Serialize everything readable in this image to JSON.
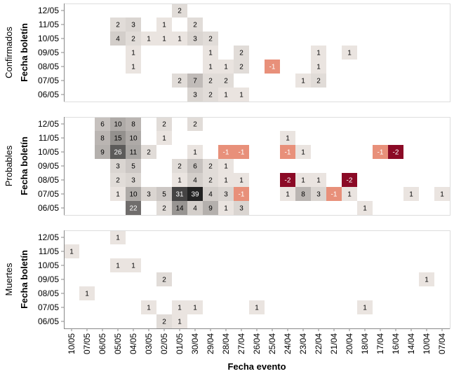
{
  "chart_data": {
    "type": "heatmap",
    "xlabel": "Fecha evento",
    "ylabel": "Fecha boletín",
    "x_categories": [
      "10/05",
      "07/05",
      "06/05",
      "05/05",
      "04/05",
      "03/05",
      "02/05",
      "01/05",
      "30/04",
      "29/04",
      "28/04",
      "27/04",
      "26/04",
      "25/04",
      "24/04",
      "23/04",
      "22/04",
      "21/04",
      "20/04",
      "18/04",
      "17/04",
      "16/04",
      "14/04",
      "10/04",
      "07/04"
    ],
    "y_categories": [
      "12/05",
      "11/05",
      "10/05",
      "09/05",
      "08/05",
      "07/05",
      "06/05"
    ],
    "colors": {
      "positive_light": "#f5efeb",
      "positive_dark": "#222222",
      "negative_light": "#e8907a",
      "negative_dark": "#8b0a26"
    },
    "panels": [
      {
        "name": "Confirmados",
        "cells": [
          {
            "x": "01/05",
            "y": "12/05",
            "value": 2
          },
          {
            "x": "05/05",
            "y": "11/05",
            "value": 2
          },
          {
            "x": "04/05",
            "y": "11/05",
            "value": 3
          },
          {
            "x": "02/05",
            "y": "11/05",
            "value": 1
          },
          {
            "x": "30/04",
            "y": "11/05",
            "value": 2
          },
          {
            "x": "05/05",
            "y": "10/05",
            "value": 4
          },
          {
            "x": "04/05",
            "y": "10/05",
            "value": 2
          },
          {
            "x": "03/05",
            "y": "10/05",
            "value": 1
          },
          {
            "x": "02/05",
            "y": "10/05",
            "value": 1
          },
          {
            "x": "01/05",
            "y": "10/05",
            "value": 1
          },
          {
            "x": "30/04",
            "y": "10/05",
            "value": 3
          },
          {
            "x": "29/04",
            "y": "10/05",
            "value": 2
          },
          {
            "x": "04/05",
            "y": "09/05",
            "value": 1
          },
          {
            "x": "29/04",
            "y": "09/05",
            "value": 1
          },
          {
            "x": "27/04",
            "y": "09/05",
            "value": 2
          },
          {
            "x": "22/04",
            "y": "09/05",
            "value": 1
          },
          {
            "x": "20/04",
            "y": "09/05",
            "value": 1
          },
          {
            "x": "04/05",
            "y": "08/05",
            "value": 1
          },
          {
            "x": "29/04",
            "y": "08/05",
            "value": 1
          },
          {
            "x": "28/04",
            "y": "08/05",
            "value": 1
          },
          {
            "x": "27/04",
            "y": "08/05",
            "value": 2
          },
          {
            "x": "25/04",
            "y": "08/05",
            "value": -1
          },
          {
            "x": "22/04",
            "y": "08/05",
            "value": 1
          },
          {
            "x": "01/05",
            "y": "07/05",
            "value": 2
          },
          {
            "x": "30/04",
            "y": "07/05",
            "value": 7
          },
          {
            "x": "29/04",
            "y": "07/05",
            "value": 2
          },
          {
            "x": "28/04",
            "y": "07/05",
            "value": 2
          },
          {
            "x": "23/04",
            "y": "07/05",
            "value": 1
          },
          {
            "x": "22/04",
            "y": "07/05",
            "value": 2
          },
          {
            "x": "30/04",
            "y": "06/05",
            "value": 3
          },
          {
            "x": "29/04",
            "y": "06/05",
            "value": 2
          },
          {
            "x": "28/04",
            "y": "06/05",
            "value": 1
          },
          {
            "x": "27/04",
            "y": "06/05",
            "value": 1
          }
        ]
      },
      {
        "name": "Probables",
        "cells": [
          {
            "x": "06/05",
            "y": "12/05",
            "value": 6
          },
          {
            "x": "05/05",
            "y": "12/05",
            "value": 10
          },
          {
            "x": "04/05",
            "y": "12/05",
            "value": 8
          },
          {
            "x": "02/05",
            "y": "12/05",
            "value": 2
          },
          {
            "x": "30/04",
            "y": "12/05",
            "value": 2
          },
          {
            "x": "06/05",
            "y": "11/05",
            "value": 8
          },
          {
            "x": "05/05",
            "y": "11/05",
            "value": 15
          },
          {
            "x": "04/05",
            "y": "11/05",
            "value": 10
          },
          {
            "x": "02/05",
            "y": "11/05",
            "value": 1
          },
          {
            "x": "24/04",
            "y": "11/05",
            "value": 1
          },
          {
            "x": "06/05",
            "y": "10/05",
            "value": 9
          },
          {
            "x": "05/05",
            "y": "10/05",
            "value": 26
          },
          {
            "x": "04/05",
            "y": "10/05",
            "value": 11
          },
          {
            "x": "03/05",
            "y": "10/05",
            "value": 2
          },
          {
            "x": "30/04",
            "y": "10/05",
            "value": 1
          },
          {
            "x": "28/04",
            "y": "10/05",
            "value": -1
          },
          {
            "x": "27/04",
            "y": "10/05",
            "value": -1
          },
          {
            "x": "24/04",
            "y": "10/05",
            "value": -1
          },
          {
            "x": "23/04",
            "y": "10/05",
            "value": 1
          },
          {
            "x": "17/04",
            "y": "10/05",
            "value": -1
          },
          {
            "x": "16/04",
            "y": "10/05",
            "value": -2
          },
          {
            "x": "05/05",
            "y": "09/05",
            "value": 3
          },
          {
            "x": "04/05",
            "y": "09/05",
            "value": 5
          },
          {
            "x": "01/05",
            "y": "09/05",
            "value": 2
          },
          {
            "x": "30/04",
            "y": "09/05",
            "value": 6
          },
          {
            "x": "29/04",
            "y": "09/05",
            "value": 2
          },
          {
            "x": "28/04",
            "y": "09/05",
            "value": 1
          },
          {
            "x": "05/05",
            "y": "08/05",
            "value": 2
          },
          {
            "x": "04/05",
            "y": "08/05",
            "value": 3
          },
          {
            "x": "01/05",
            "y": "08/05",
            "value": 1
          },
          {
            "x": "30/04",
            "y": "08/05",
            "value": 4
          },
          {
            "x": "29/04",
            "y": "08/05",
            "value": 2
          },
          {
            "x": "28/04",
            "y": "08/05",
            "value": 1
          },
          {
            "x": "27/04",
            "y": "08/05",
            "value": 1
          },
          {
            "x": "24/04",
            "y": "08/05",
            "value": -2
          },
          {
            "x": "23/04",
            "y": "08/05",
            "value": 1
          },
          {
            "x": "22/04",
            "y": "08/05",
            "value": 1
          },
          {
            "x": "20/04",
            "y": "08/05",
            "value": -2
          },
          {
            "x": "05/05",
            "y": "07/05",
            "value": 1
          },
          {
            "x": "04/05",
            "y": "07/05",
            "value": 10
          },
          {
            "x": "03/05",
            "y": "07/05",
            "value": 3
          },
          {
            "x": "02/05",
            "y": "07/05",
            "value": 5
          },
          {
            "x": "01/05",
            "y": "07/05",
            "value": 31
          },
          {
            "x": "30/04",
            "y": "07/05",
            "value": 39
          },
          {
            "x": "29/04",
            "y": "07/05",
            "value": 4
          },
          {
            "x": "28/04",
            "y": "07/05",
            "value": 3
          },
          {
            "x": "27/04",
            "y": "07/05",
            "value": -1
          },
          {
            "x": "24/04",
            "y": "07/05",
            "value": 1
          },
          {
            "x": "23/04",
            "y": "07/05",
            "value": 8
          },
          {
            "x": "22/04",
            "y": "07/05",
            "value": 3
          },
          {
            "x": "21/04",
            "y": "07/05",
            "value": -1
          },
          {
            "x": "20/04",
            "y": "07/05",
            "value": 1
          },
          {
            "x": "14/04",
            "y": "07/05",
            "value": 1
          },
          {
            "x": "07/04",
            "y": "07/05",
            "value": 1
          },
          {
            "x": "04/05",
            "y": "06/05",
            "value": 22
          },
          {
            "x": "02/05",
            "y": "06/05",
            "value": 2
          },
          {
            "x": "01/05",
            "y": "06/05",
            "value": 14
          },
          {
            "x": "30/04",
            "y": "06/05",
            "value": 4
          },
          {
            "x": "29/04",
            "y": "06/05",
            "value": 9
          },
          {
            "x": "28/04",
            "y": "06/05",
            "value": 1
          },
          {
            "x": "27/04",
            "y": "06/05",
            "value": 3
          },
          {
            "x": "18/04",
            "y": "06/05",
            "value": 1
          }
        ]
      },
      {
        "name": "Muertes",
        "cells": [
          {
            "x": "05/05",
            "y": "12/05",
            "value": 1
          },
          {
            "x": "10/05",
            "y": "11/05",
            "value": 1
          },
          {
            "x": "05/05",
            "y": "10/05",
            "value": 1
          },
          {
            "x": "04/05",
            "y": "10/05",
            "value": 1
          },
          {
            "x": "02/05",
            "y": "09/05",
            "value": 2
          },
          {
            "x": "10/04",
            "y": "09/05",
            "value": 1
          },
          {
            "x": "07/05",
            "y": "08/05",
            "value": 1
          },
          {
            "x": "03/05",
            "y": "07/05",
            "value": 1
          },
          {
            "x": "01/05",
            "y": "07/05",
            "value": 1
          },
          {
            "x": "30/04",
            "y": "07/05",
            "value": 1
          },
          {
            "x": "26/04",
            "y": "07/05",
            "value": 1
          },
          {
            "x": "18/04",
            "y": "07/05",
            "value": 1
          },
          {
            "x": "02/05",
            "y": "06/05",
            "value": 2
          },
          {
            "x": "01/05",
            "y": "06/05",
            "value": 1
          }
        ]
      }
    ]
  }
}
